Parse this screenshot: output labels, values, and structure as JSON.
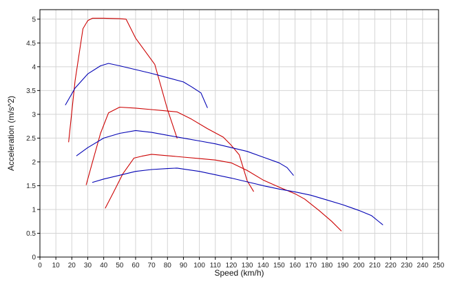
{
  "chart_data": {
    "type": "line",
    "xlabel": "Speed (km/h)",
    "ylabel": "Acceleration (m/s^2)",
    "xlim": [
      0,
      250
    ],
    "ylim": [
      0,
      5.2
    ],
    "x_ticks": [
      "0",
      "10",
      "20",
      "30",
      "40",
      "50",
      "60",
      "70",
      "80",
      "90",
      "100",
      "110",
      "120",
      "130",
      "140",
      "150",
      "160",
      "170",
      "180",
      "190",
      "200",
      "210",
      "220",
      "230",
      "240",
      "250"
    ],
    "y_ticks": [
      "0",
      "0.5",
      "1",
      "1.5",
      "2",
      "2.5",
      "3",
      "3.5",
      "4",
      "4.5",
      "5"
    ],
    "grid": true,
    "legend": "none",
    "series": [
      {
        "color": "#cc0000",
        "points": [
          [
            18,
            2.42
          ],
          [
            22,
            3.7
          ],
          [
            27,
            4.8
          ],
          [
            30,
            4.97
          ],
          [
            33,
            5.02
          ],
          [
            40,
            5.02
          ],
          [
            50,
            5.01
          ],
          [
            54,
            5.0
          ],
          [
            60,
            4.6
          ],
          [
            72,
            4.05
          ],
          [
            80,
            3.1
          ],
          [
            86,
            2.5
          ]
        ]
      },
      {
        "color": "#0000b4",
        "points": [
          [
            16,
            3.2
          ],
          [
            22,
            3.55
          ],
          [
            30,
            3.85
          ],
          [
            38,
            4.02
          ],
          [
            43,
            4.07
          ],
          [
            50,
            4.02
          ],
          [
            60,
            3.94
          ],
          [
            70,
            3.86
          ],
          [
            80,
            3.77
          ],
          [
            90,
            3.68
          ],
          [
            95,
            3.58
          ],
          [
            101,
            3.45
          ],
          [
            105,
            3.14
          ]
        ]
      },
      {
        "color": "#cc0000",
        "points": [
          [
            29,
            1.52
          ],
          [
            33,
            2.0
          ],
          [
            38,
            2.6
          ],
          [
            43,
            3.03
          ],
          [
            50,
            3.15
          ],
          [
            60,
            3.13
          ],
          [
            70,
            3.1
          ],
          [
            77,
            3.08
          ],
          [
            86,
            3.05
          ],
          [
            95,
            2.9
          ],
          [
            105,
            2.7
          ],
          [
            115,
            2.52
          ],
          [
            120,
            2.35
          ],
          [
            125,
            2.15
          ],
          [
            130,
            1.6
          ],
          [
            134,
            1.38
          ]
        ]
      },
      {
        "color": "#0000b4",
        "points": [
          [
            23,
            2.13
          ],
          [
            30,
            2.3
          ],
          [
            40,
            2.5
          ],
          [
            50,
            2.6
          ],
          [
            60,
            2.66
          ],
          [
            70,
            2.62
          ],
          [
            80,
            2.56
          ],
          [
            90,
            2.5
          ],
          [
            100,
            2.44
          ],
          [
            110,
            2.38
          ],
          [
            120,
            2.3
          ],
          [
            130,
            2.22
          ],
          [
            140,
            2.1
          ],
          [
            150,
            1.98
          ],
          [
            155,
            1.88
          ],
          [
            159,
            1.72
          ]
        ]
      },
      {
        "color": "#cc0000",
        "points": [
          [
            41,
            1.03
          ],
          [
            46,
            1.35
          ],
          [
            52,
            1.75
          ],
          [
            59,
            2.08
          ],
          [
            64,
            2.12
          ],
          [
            70,
            2.16
          ],
          [
            80,
            2.13
          ],
          [
            90,
            2.1
          ],
          [
            100,
            2.07
          ],
          [
            110,
            2.04
          ],
          [
            120,
            1.98
          ],
          [
            130,
            1.82
          ],
          [
            140,
            1.62
          ],
          [
            150,
            1.47
          ],
          [
            160,
            1.33
          ],
          [
            166,
            1.22
          ],
          [
            175,
            0.98
          ],
          [
            183,
            0.75
          ],
          [
            189,
            0.55
          ]
        ]
      },
      {
        "color": "#0000b4",
        "points": [
          [
            33,
            1.57
          ],
          [
            40,
            1.64
          ],
          [
            50,
            1.72
          ],
          [
            60,
            1.8
          ],
          [
            70,
            1.84
          ],
          [
            80,
            1.86
          ],
          [
            86,
            1.87
          ],
          [
            90,
            1.85
          ],
          [
            100,
            1.8
          ],
          [
            110,
            1.73
          ],
          [
            120,
            1.66
          ],
          [
            130,
            1.58
          ],
          [
            140,
            1.5
          ],
          [
            150,
            1.43
          ],
          [
            160,
            1.37
          ],
          [
            170,
            1.3
          ],
          [
            180,
            1.2
          ],
          [
            190,
            1.1
          ],
          [
            200,
            0.98
          ],
          [
            208,
            0.87
          ],
          [
            212,
            0.76
          ],
          [
            215,
            0.68
          ]
        ]
      }
    ]
  }
}
